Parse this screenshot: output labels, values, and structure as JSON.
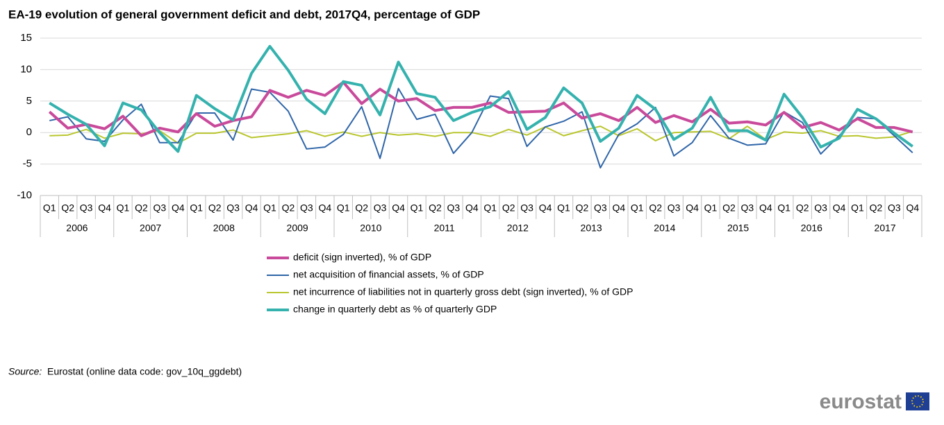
{
  "chart_data": {
    "type": "line",
    "title": "EA-19 evolution of general government deficit and debt, 2017Q4, percentage of GDP",
    "categories": [
      "Q1",
      "Q2",
      "Q3",
      "Q4",
      "Q1",
      "Q2",
      "Q3",
      "Q4",
      "Q1",
      "Q2",
      "Q3",
      "Q4",
      "Q1",
      "Q2",
      "Q3",
      "Q4",
      "Q1",
      "Q2",
      "Q3",
      "Q4",
      "Q1",
      "Q2",
      "Q3",
      "Q4",
      "Q1",
      "Q2",
      "Q3",
      "Q4",
      "Q1",
      "Q2",
      "Q3",
      "Q4",
      "Q1",
      "Q2",
      "Q3",
      "Q4",
      "Q1",
      "Q2",
      "Q3",
      "Q4",
      "Q1",
      "Q2",
      "Q3",
      "Q4",
      "Q1",
      "Q2",
      "Q3",
      "Q4"
    ],
    "years": [
      "2006",
      "2007",
      "2008",
      "2009",
      "2010",
      "2011",
      "2012",
      "2013",
      "2014",
      "2015",
      "2016",
      "2017"
    ],
    "series": [
      {
        "name": "deficit (sign inverted), % of GDP",
        "color": "#c94a9b",
        "values": [
          3.3,
          0.7,
          1.3,
          0.6,
          2.6,
          -0.5,
          0.7,
          0.1,
          3.0,
          1.0,
          1.9,
          2.5,
          6.7,
          5.6,
          6.7,
          5.9,
          8.0,
          4.6,
          6.9,
          5.0,
          5.4,
          3.5,
          4.0,
          4.0,
          4.7,
          3.2,
          3.3,
          3.4,
          4.7,
          2.3,
          3.0,
          1.9,
          4.0,
          1.6,
          2.7,
          1.7,
          3.7,
          1.5,
          1.7,
          1.2,
          3.2,
          0.8,
          1.6,
          0.4,
          2.2,
          0.8,
          0.8,
          0.1
        ]
      },
      {
        "name": "net acquisition of financial assets, % of GDP",
        "color": "#2f65a8",
        "values": [
          1.9,
          2.5,
          -1.0,
          -1.4,
          2.0,
          4.5,
          -1.6,
          -1.6,
          3.1,
          3.1,
          -1.2,
          6.9,
          6.4,
          3.4,
          -2.6,
          -2.3,
          -0.3,
          4.1,
          -4.1,
          7.0,
          2.1,
          2.9,
          -3.3,
          0.0,
          5.8,
          5.4,
          -2.2,
          0.9,
          1.8,
          3.3,
          -5.6,
          -0.3,
          1.4,
          4.0,
          -3.7,
          -1.6,
          2.7,
          -0.9,
          -2.0,
          -1.8,
          3.3,
          1.6,
          -3.4,
          -0.5,
          2.4,
          2.2,
          -0.5,
          -3.2
        ]
      },
      {
        "name": "net incurrence of liabilities not in quarterly gross debt (sign inverted), % of GDP",
        "color": "#b9c62e",
        "values": [
          -0.5,
          -0.4,
          0.5,
          -0.9,
          -0.1,
          -0.2,
          0.3,
          -1.7,
          -0.1,
          -0.1,
          0.4,
          -0.8,
          -0.5,
          -0.2,
          0.3,
          -0.6,
          0.1,
          -0.6,
          0.0,
          -0.4,
          -0.2,
          -0.6,
          0.0,
          0.0,
          -0.6,
          0.5,
          -0.4,
          0.9,
          -0.5,
          0.3,
          1.0,
          -0.5,
          0.6,
          -1.3,
          0.0,
          0.1,
          0.2,
          -1.0,
          1.0,
          -1.1,
          0.1,
          -0.1,
          0.3,
          -0.6,
          -0.5,
          -0.9,
          -0.7,
          0.2
        ]
      },
      {
        "name": "change in quarterly debt as % of quarterly GDP",
        "color": "#35b2ae",
        "values": [
          4.7,
          2.9,
          1.3,
          -2.1,
          4.7,
          3.6,
          0.0,
          -3.0,
          5.9,
          3.8,
          2.0,
          9.4,
          13.7,
          9.9,
          5.3,
          3.0,
          8.1,
          7.5,
          2.8,
          11.2,
          6.2,
          5.6,
          1.9,
          3.2,
          4.1,
          6.5,
          0.5,
          2.4,
          7.1,
          4.7,
          -1.4,
          0.7,
          5.9,
          3.7,
          -1.1,
          0.7,
          5.6,
          0.3,
          0.3,
          -1.2,
          6.1,
          2.4,
          -2.3,
          -0.9,
          3.7,
          2.2,
          -0.1,
          -2.2
        ]
      }
    ],
    "ylim": [
      -10,
      15
    ],
    "yticks": [
      -10,
      -5,
      0,
      5,
      10,
      15
    ],
    "grid": true,
    "source_label": "Source:",
    "source_text": "Eurostat (online data code: gov_10q_ggdebt)",
    "logo": "eurostat"
  }
}
